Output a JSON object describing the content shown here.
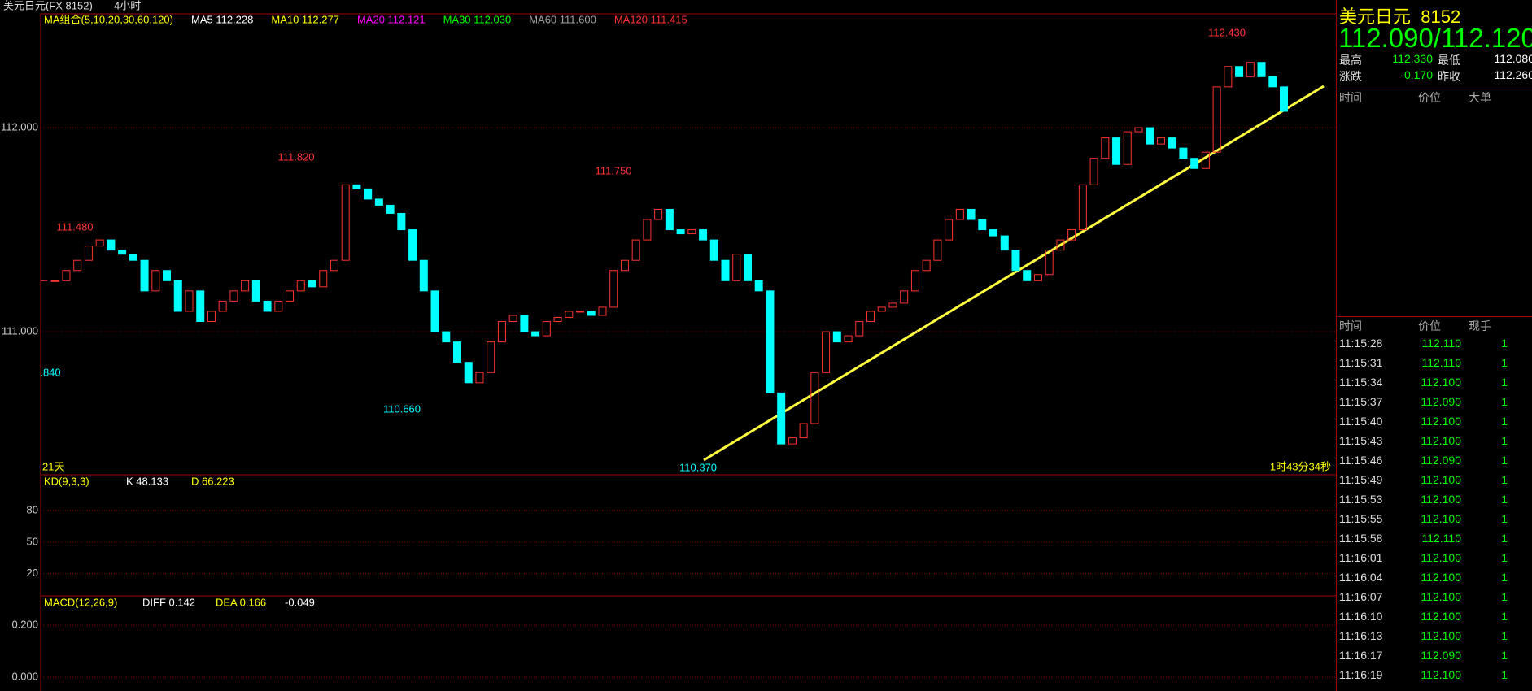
{
  "header": {
    "symbol": "美元日元(FX 8152)",
    "period": "4小时"
  },
  "indicators": [
    {
      "text": "MA组合(5,10,20,30,60,120)",
      "color": "#ffff00"
    },
    {
      "text": "MA5 112.228",
      "color": "#ffffff"
    },
    {
      "text": "MA10 112.277",
      "color": "#ffff00"
    },
    {
      "text": "MA20 112.121",
      "color": "#ff00ff"
    },
    {
      "text": "MA30 112.030",
      "color": "#00ff00"
    },
    {
      "text": "MA60 111.600",
      "color": "#a0a0a0"
    },
    {
      "text": "MA120 111.415",
      "color": "#ff3232"
    }
  ],
  "chart_data": {
    "type": "candlestick",
    "up_color": "#ff3232",
    "down_color": "#00ffff",
    "ylim": [
      110.299,
      112.558
    ],
    "yticks": [
      {
        "value": 111,
        "label": "111.000"
      },
      {
        "value": 112,
        "label": "112.000"
      }
    ],
    "close": [
      111.25,
      111.25,
      111.3,
      111.35,
      111.42,
      111.45,
      111.4,
      111.38,
      111.35,
      111.2,
      111.3,
      111.25,
      111.1,
      111.2,
      111.05,
      111.1,
      111.15,
      111.2,
      111.25,
      111.15,
      111.1,
      111.15,
      111.2,
      111.25,
      111.22,
      111.3,
      111.35,
      111.72,
      111.7,
      111.65,
      111.62,
      111.58,
      111.5,
      111.35,
      111.2,
      111.0,
      110.95,
      110.85,
      110.75,
      110.8,
      110.95,
      111.05,
      111.08,
      111.0,
      110.98,
      111.05,
      111.07,
      111.1,
      111.1,
      111.08,
      111.12,
      111.3,
      111.35,
      111.45,
      111.55,
      111.6,
      111.5,
      111.48,
      111.5,
      111.45,
      111.35,
      111.25,
      111.38,
      111.25,
      111.2,
      110.7,
      110.45,
      110.48,
      110.55,
      110.8,
      111.0,
      110.95,
      110.98,
      111.05,
      111.1,
      111.12,
      111.14,
      111.2,
      111.3,
      111.35,
      111.45,
      111.55,
      111.6,
      111.55,
      111.5,
      111.47,
      111.4,
      111.3,
      111.25,
      111.28,
      111.4,
      111.45,
      111.5,
      111.72,
      111.85,
      111.95,
      111.82,
      111.98,
      112.0,
      111.92,
      111.95,
      111.9,
      111.85,
      111.8,
      111.88,
      112.2,
      112.3,
      112.25,
      112.32,
      112.25,
      112.2,
      112.08
    ],
    "annotations": [
      "111.480",
      "111.820",
      "110.660",
      "111.750",
      "110.370",
      "112.430",
      ".840"
    ],
    "span": "21天",
    "countdown": "1时43分34秒"
  },
  "kd": {
    "title": "KD(9,3,3)",
    "k": "K 48.133",
    "d": "D 66.223",
    "ylim": [
      -1,
      114
    ],
    "yticks": [
      20,
      50,
      80
    ]
  },
  "macd": {
    "title": "MACD(12,26,9)",
    "diff": "DIFF 0.142",
    "dea": "DEA 0.166",
    "macd": "-0.049",
    "ylim": [
      -0.053,
      0.3125
    ],
    "yticks": [
      {
        "value": 0,
        "label": "0.000"
      },
      {
        "value": 0.2,
        "label": "0.200"
      }
    ]
  },
  "quote": {
    "name": "美元日元",
    "code": "8152",
    "price": "112.090/112.120",
    "rows": [
      [
        "最高",
        "112.330",
        "最低",
        "112.080"
      ],
      [
        "涨跌",
        "-0.170",
        "昨收",
        "112.260"
      ]
    ]
  },
  "bigorders": {
    "headers": [
      "时间",
      "价位",
      "大单"
    ]
  },
  "ticks": {
    "headers": [
      "时间",
      "价位",
      "现手"
    ],
    "rows": [
      [
        "11:15:28",
        "112.110",
        "1"
      ],
      [
        "11:15:31",
        "112.110",
        "1"
      ],
      [
        "11:15:34",
        "112.100",
        "1"
      ],
      [
        "11:15:37",
        "112.090",
        "1"
      ],
      [
        "11:15:40",
        "112.100",
        "1"
      ],
      [
        "11:15:43",
        "112.100",
        "1"
      ],
      [
        "11:15:46",
        "112.090",
        "1"
      ],
      [
        "11:15:49",
        "112.100",
        "1"
      ],
      [
        "11:15:53",
        "112.100",
        "1"
      ],
      [
        "11:15:55",
        "112.100",
        "1"
      ],
      [
        "11:15:58",
        "112.110",
        "1"
      ],
      [
        "11:16:01",
        "112.100",
        "1"
      ],
      [
        "11:16:04",
        "112.100",
        "1"
      ],
      [
        "11:16:07",
        "112.100",
        "1"
      ],
      [
        "11:16:10",
        "112.100",
        "1"
      ],
      [
        "11:16:13",
        "112.100",
        "1"
      ],
      [
        "11:16:17",
        "112.090",
        "1"
      ],
      [
        "11:16:19",
        "112.100",
        "1"
      ]
    ]
  }
}
